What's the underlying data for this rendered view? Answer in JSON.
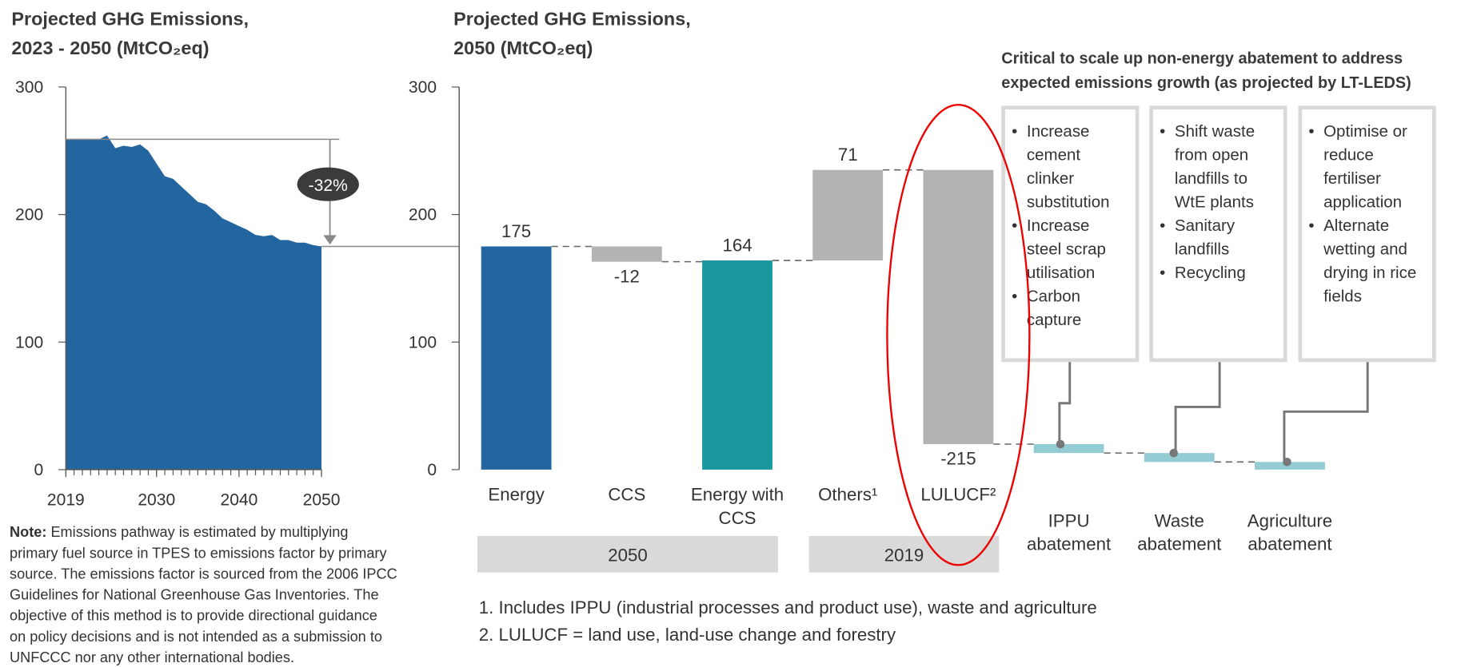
{
  "chart_data": [
    {
      "type": "area",
      "title_lines": [
        "Projected GHG Emissions,",
        "2023 - 2050 (MtCO₂eq)"
      ],
      "x": [
        2019,
        2020,
        2021,
        2022,
        2023,
        2024,
        2025,
        2026,
        2027,
        2028,
        2029,
        2030,
        2031,
        2032,
        2033,
        2034,
        2035,
        2036,
        2037,
        2038,
        2039,
        2040,
        2041,
        2042,
        2043,
        2044,
        2045,
        2046,
        2047,
        2048,
        2049,
        2050
      ],
      "values": [
        259,
        259,
        259,
        259,
        259,
        262,
        252,
        254,
        253,
        255,
        250,
        240,
        230,
        228,
        222,
        216,
        210,
        208,
        203,
        197,
        194,
        191,
        188,
        184,
        183,
        184,
        180,
        180,
        178,
        178,
        176,
        175
      ],
      "color": "#23669f",
      "xlim": [
        2019,
        2050
      ],
      "ylim": [
        0,
        300
      ],
      "xticks": [
        2019,
        2030,
        2040,
        2050
      ],
      "yticks": [
        0,
        100,
        200,
        300
      ],
      "annotation": "-32%"
    },
    {
      "type": "waterfall",
      "title_lines": [
        "Projected GHG Emissions,",
        "2050 (MtCO₂eq)"
      ],
      "categories": [
        "Energy",
        "CCS",
        "Energy with CCS",
        "Others¹",
        "LULUCF²",
        "IPPU abatement",
        "Waste abatement",
        "Agriculture abatement"
      ],
      "values": [
        175,
        -12,
        164,
        71,
        -215,
        -7,
        -7,
        -6
      ],
      "value_labels": [
        "175",
        "-12",
        "164",
        "71",
        "-215",
        null,
        null,
        null
      ],
      "bar_kinds": [
        "total",
        "delta",
        "total",
        "delta",
        "delta",
        "delta",
        "delta",
        "delta"
      ],
      "colors": [
        "#23669f",
        "#b3b3b3",
        "#1b979f",
        "#b3b3b3",
        "#b3b3b3",
        "#94ccd4",
        "#94ccd4",
        "#94ccd4"
      ],
      "ylim": [
        0,
        300
      ],
      "yticks": [
        0,
        100,
        200,
        300
      ],
      "groups": [
        {
          "label": "2050",
          "span": 3
        },
        {
          "label": "2019",
          "span": 2
        }
      ]
    }
  ],
  "abatement_panel": {
    "heading_lines": [
      "Critical to scale up non-energy abatement to address",
      "expected emissions growth (as projected by LT-LEDS)"
    ],
    "boxes": [
      {
        "bullets": [
          [
            "Increase",
            "cement",
            "clinker",
            "substitution"
          ],
          [
            "Increase",
            "steel scrap",
            "utilisation"
          ],
          [
            "Carbon",
            "capture"
          ]
        ]
      },
      {
        "bullets": [
          [
            "Shift waste",
            "from open",
            "landfills to",
            "WtE plants"
          ],
          [
            "Sanitary",
            "landfills"
          ],
          [
            "Recycling"
          ]
        ]
      },
      {
        "bullets": [
          [
            "Optimise or",
            "reduce",
            "fertiliser",
            "application"
          ],
          [
            "Alternate",
            "wetting and",
            "drying in rice",
            "fields"
          ]
        ]
      }
    ]
  },
  "note": {
    "label": "Note:",
    "lines": [
      " Emissions pathway is estimated by multiplying",
      "primary fuel source in TPES to emissions factor by primary",
      "source. The emissions factor is sourced from the 2006 IPCC",
      "Guidelines for National Greenhouse Gas Inventories. The",
      "objective of this method is to provide directional guidance",
      "on policy decisions and is not intended as a submission to",
      "UNFCCC nor any other international bodies."
    ]
  },
  "footnotes": [
    "1. Includes IPPU (industrial processes and product use), waste and agriculture",
    "2. LULUCF = land use, land-use change and forestry"
  ]
}
